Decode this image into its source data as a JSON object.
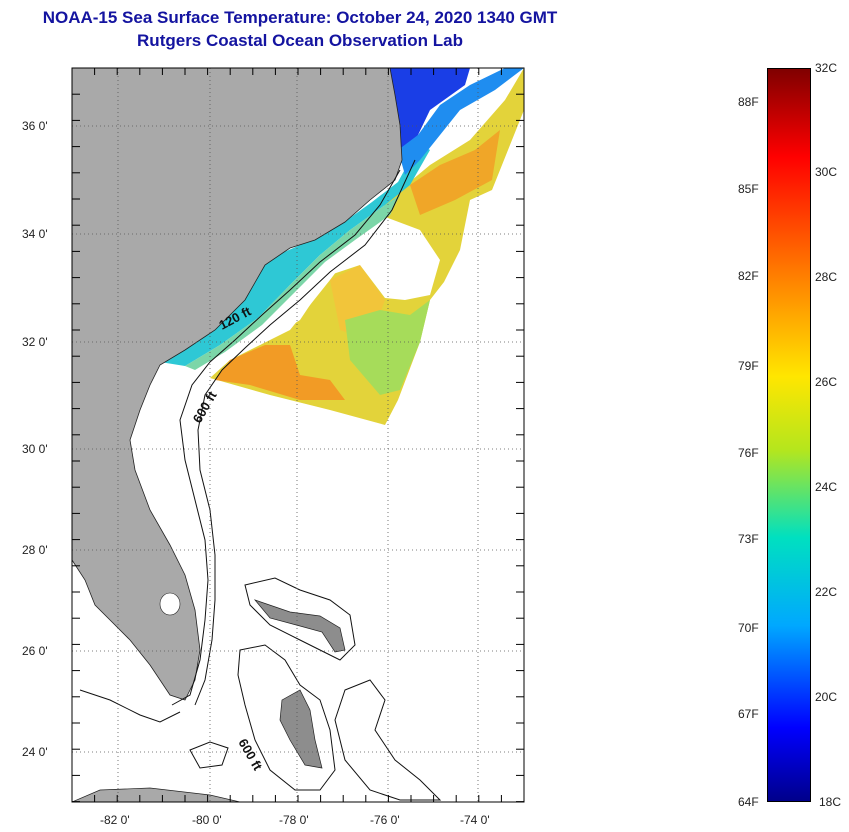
{
  "header": {
    "title": "NOAA-15 Sea Surface Temperature:  October 24, 2020 1340 GMT",
    "subtitle": "Rutgers Coastal Ocean Observation Lab"
  },
  "map": {
    "lat_range": [
      23,
      37
    ],
    "lon_range": [
      -83,
      -73
    ],
    "lat_ticks": [
      {
        "value": 24,
        "label": "24 0'"
      },
      {
        "value": 26,
        "label": "26 0'"
      },
      {
        "value": 28,
        "label": "28 0'"
      },
      {
        "value": 30,
        "label": "30 0'"
      },
      {
        "value": 32,
        "label": "32 0'"
      },
      {
        "value": 34,
        "label": "34 0'"
      },
      {
        "value": 36,
        "label": "36 0'"
      }
    ],
    "lon_ticks": [
      {
        "value": -82,
        "label": "-82 0'"
      },
      {
        "value": -80,
        "label": "-80 0'"
      },
      {
        "value": -78,
        "label": "-78 0'"
      },
      {
        "value": -76,
        "label": "-76 0'"
      },
      {
        "value": -74,
        "label": "-74 0'"
      }
    ],
    "contour_labels": {
      "shelf_120": "120 ft",
      "shelf_600": "600 ft",
      "bahamas_600": "600 ft"
    },
    "gridlines": "dotted",
    "land_color": "#a9a9a9"
  },
  "colorbar": {
    "min_c": 18,
    "max_c": 32,
    "celsius_labels": [
      "32C",
      "30C",
      "28C",
      "26C",
      "24C",
      "22C",
      "20C",
      "18C"
    ],
    "fahrenheit_labels": [
      "88F",
      "85F",
      "82F",
      "79F",
      "76F",
      "73F",
      "70F",
      "67F",
      "64F"
    ]
  }
}
